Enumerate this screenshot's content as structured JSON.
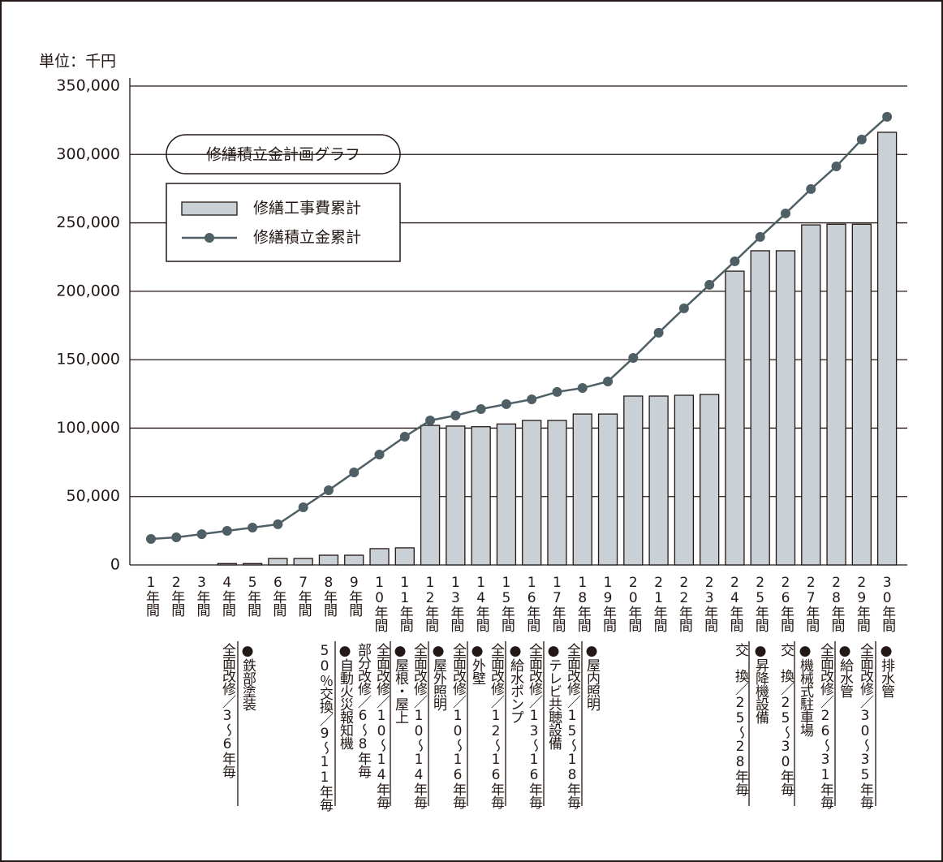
{
  "chart_data": {
    "type": "bar",
    "title": "修繕積立金計画グラフ",
    "y_label": "単位：千円",
    "categories": [
      "1年間",
      "2年間",
      "3年間",
      "4年間",
      "5年間",
      "6年間",
      "7年間",
      "8年間",
      "9年間",
      "10年間",
      "11年間",
      "12年間",
      "13年間",
      "14年間",
      "15年間",
      "16年間",
      "17年間",
      "18年間",
      "19年間",
      "20年間",
      "21年間",
      "22年間",
      "23年間",
      "24年間",
      "25年間",
      "26年間",
      "27年間",
      "28年間",
      "29年間",
      "30年間"
    ],
    "series": [
      {
        "name": "修繕工事費累計",
        "type": "bar",
        "color": "#c9d0d6",
        "values": [
          0,
          0,
          0,
          1000,
          1000,
          4700,
          4700,
          7100,
          7100,
          11900,
          12500,
          102000,
          101500,
          101000,
          103000,
          105600,
          105600,
          110300,
          110300,
          123400,
          123400,
          124000,
          124600,
          214700,
          229600,
          229600,
          248500,
          249000,
          249000,
          316200
        ]
      },
      {
        "name": "修繕積立金累計",
        "type": "line",
        "color": "#4f5f66",
        "values": [
          19000,
          20200,
          22500,
          24900,
          27300,
          29700,
          42100,
          54600,
          67600,
          80700,
          93700,
          105600,
          109200,
          113900,
          117500,
          121000,
          126400,
          129300,
          134100,
          151300,
          169700,
          187500,
          204700,
          221900,
          239700,
          256900,
          274700,
          291300,
          310900,
          327500
        ]
      }
    ],
    "ylim": [
      0,
      350000
    ],
    "yticks": [
      0,
      {
        "value": 50000,
        "label": "50,000"
      },
      {
        "value": 100000,
        "label": "100,000"
      },
      {
        "value": 150000,
        "label": "150,000"
      },
      {
        "value": 200000,
        "label": "200,000"
      },
      {
        "value": 250000,
        "label": "250,000"
      },
      {
        "value": 300000,
        "label": "300,000"
      },
      {
        "value": 350000,
        "label": "350,000"
      }
    ],
    "grid": true,
    "annotations": [
      "全面改修／3〜6年毎",
      "●鉄部塗装",
      "50％交換／9〜11年毎",
      "●自動火災報知機",
      "部分改修／6〜8年毎",
      "全面改修／10〜14年毎",
      "●屋根・屋上",
      "全面改修／10〜14年毎",
      "●屋外照明",
      "全面改修／10〜16年毎",
      "●外壁",
      "全面改修／12〜16年毎",
      "●給水ポンプ",
      "全面改修／13〜16年毎",
      "●テレビ共聴設備",
      "全面改修／15〜18年毎",
      "●屋内照明",
      "交　換／25〜28年毎",
      "●昇降機設備",
      "交　換／25〜30年毎",
      "●機械式駐車場",
      "全面改修／26〜31年毎",
      "●給水管",
      "全面改修／30〜35年毎",
      "●排水管"
    ]
  }
}
